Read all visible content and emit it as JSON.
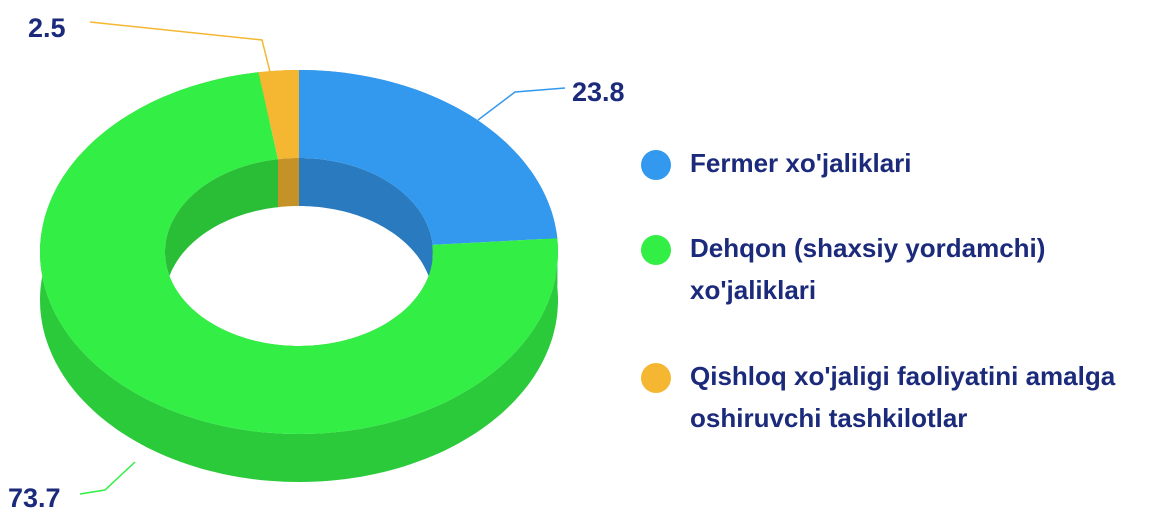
{
  "chart_data": {
    "type": "donut",
    "series": [
      {
        "name": "Fermer xo'jaliklari",
        "color": "#3399ee",
        "values": [
          23.8
        ]
      },
      {
        "name": "Dehqon (shaxsiy yordamchi) xo'jaliklari",
        "color": "#33ee44",
        "values": [
          73.7
        ]
      },
      {
        "name": "Qishloq xo'jaligi faoliyatini amalga oshiruvchi tashkilotlar",
        "color": "#f5b731",
        "values": [
          2.5
        ]
      }
    ]
  }
}
